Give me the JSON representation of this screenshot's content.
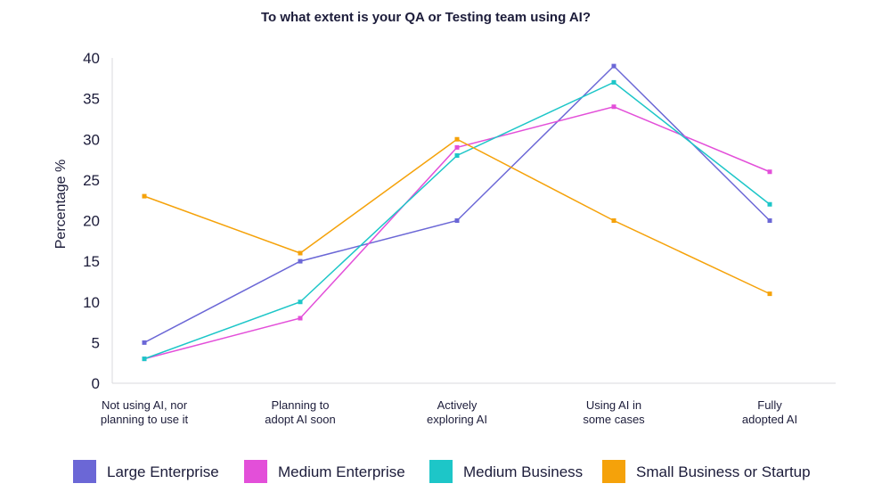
{
  "chart_data": {
    "type": "line",
    "title": "To what extent is your QA or Testing team using AI?",
    "xlabel": "",
    "ylabel": "Percentage %",
    "ylim": [
      0,
      40
    ],
    "yticks": [
      "0",
      "5",
      "10",
      "15",
      "20",
      "25",
      "30",
      "35",
      "40"
    ],
    "grid": false,
    "legend_position": "bottom",
    "categories": [
      [
        "Not using AI, nor",
        "planning to use it"
      ],
      [
        "Planning to",
        "adopt AI soon"
      ],
      [
        "Actively",
        "exploring AI"
      ],
      [
        "Using AI in",
        "some cases"
      ],
      [
        "Fully",
        "adopted AI"
      ]
    ],
    "series": [
      {
        "name": "Large Enterprise",
        "color": "#6b67d6",
        "values": [
          5,
          15,
          20,
          39,
          20
        ]
      },
      {
        "name": "Medium Enterprise",
        "color": "#e34fd9",
        "values": [
          3,
          8,
          29,
          34,
          26
        ]
      },
      {
        "name": "Medium Business",
        "color": "#1dc6c8",
        "values": [
          3,
          10,
          28,
          37,
          22
        ]
      },
      {
        "name": "Small Business or Startup",
        "color": "#f5a20a",
        "values": [
          23,
          16,
          30,
          20,
          11
        ]
      }
    ]
  }
}
